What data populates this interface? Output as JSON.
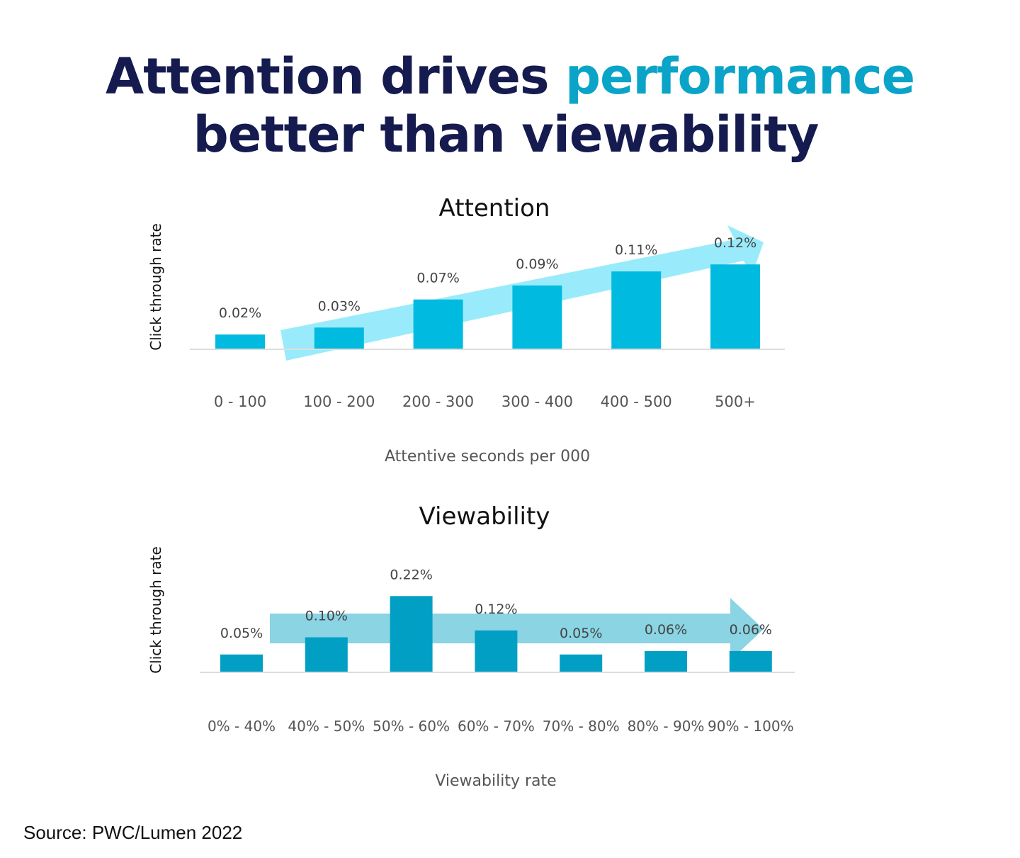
{
  "headline": {
    "line1_start": "Attention drives ",
    "line1_accent": "performance",
    "line2": "better than viewability"
  },
  "colors": {
    "headline": "#151b4f",
    "accent": "#0aa4c8",
    "attention_bar": "#00bbdf",
    "attention_arrow": "#8ee9fb",
    "viewability_bar": "#029fc5",
    "viewability_arrow": "#7dcfe0"
  },
  "source": "Source: PWC/Lumen 2022",
  "chart_data": [
    {
      "type": "bar",
      "title": "Attention",
      "xlabel": "Attentive seconds per 000",
      "ylabel": "Click through rate",
      "categories": [
        "0 - 100",
        "100 - 200",
        "200 - 300",
        "300 - 400",
        "400 - 500",
        "500+"
      ],
      "values": [
        0.02,
        0.03,
        0.07,
        0.09,
        0.11,
        0.12
      ],
      "data_labels": [
        "0.02%",
        "0.03%",
        "0.07%",
        "0.09%",
        "0.11%",
        "0.12%"
      ],
      "unit": "%",
      "grid": false,
      "annotation": "trend arrow rising from 100 - 200 to 500+"
    },
    {
      "type": "bar",
      "title": "Viewability",
      "xlabel": "Viewability rate",
      "ylabel": "Click through rate",
      "categories": [
        "0% - 40%",
        "40% - 50%",
        "50% - 60%",
        "60% - 70%",
        "70% - 80%",
        "80% - 90%",
        "90% - 100%"
      ],
      "values": [
        0.05,
        0.1,
        0.22,
        0.12,
        0.05,
        0.06,
        0.06
      ],
      "data_labels": [
        "0.05%",
        "0.10%",
        "0.22%",
        "0.12%",
        "0.05%",
        "0.06%",
        "0.06%"
      ],
      "unit": "%",
      "grid": false,
      "annotation": "flat trend arrow across all categories"
    }
  ]
}
